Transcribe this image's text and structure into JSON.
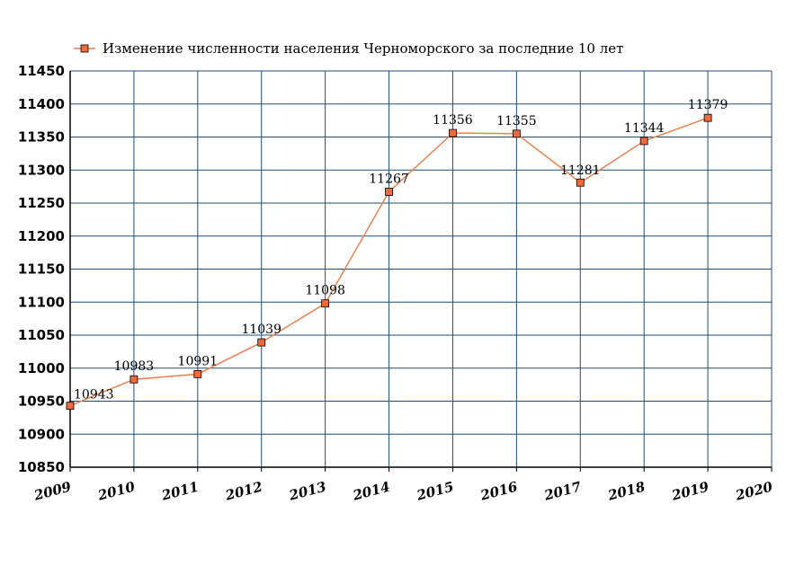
{
  "chart_data": {
    "type": "line",
    "title": "",
    "xlabel": "",
    "ylabel": "",
    "x_ticks": [
      "2009",
      "2010",
      "2011",
      "2012",
      "2013",
      "2014",
      "2015",
      "2016",
      "2017",
      "2018",
      "2019",
      "2020"
    ],
    "y_ticks": [
      "10850",
      "10900",
      "10950",
      "11000",
      "11050",
      "11100",
      "11150",
      "11200",
      "11250",
      "11300",
      "11350",
      "11400",
      "11450"
    ],
    "xlim": [
      2009,
      2020
    ],
    "ylim": [
      10850,
      11450
    ],
    "grid": true,
    "legend_position": "top-left",
    "series": [
      {
        "name": "Изменение численности населения Черноморского за последние 10 лет",
        "color": "#e8834e",
        "marker_fill": "#f06a3a",
        "x": [
          2009,
          2010,
          2011,
          2012,
          2013,
          2014,
          2015,
          2016,
          2017,
          2018,
          2019
        ],
        "values": [
          10943,
          10983,
          10991,
          11039,
          11098,
          11267,
          11356,
          11355,
          11281,
          11344,
          11379
        ],
        "labels": [
          "10943",
          "10983",
          "10991",
          "11039",
          "11098",
          "11267",
          "11356",
          "11355",
          "11281",
          "11344",
          "11379"
        ]
      }
    ],
    "grid_color": "#1f4e79"
  }
}
